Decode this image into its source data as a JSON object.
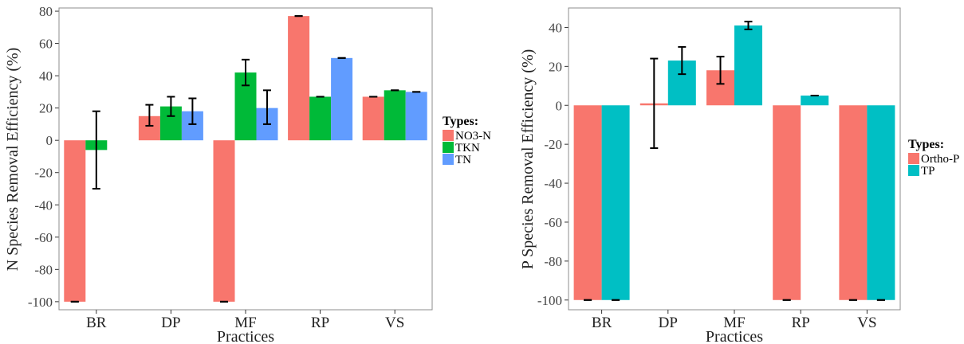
{
  "chart_data": [
    {
      "type": "bar",
      "xlabel": "Practices",
      "ylabel": "N Species Removal Efficiency (%)",
      "categories": [
        "BR",
        "DP",
        "MF",
        "RP",
        "VS"
      ],
      "ylim": [
        -105,
        82
      ],
      "yticks": [
        80,
        60,
        40,
        20,
        0,
        -20,
        -40,
        -60,
        -80,
        -100
      ],
      "ytick_labels": [
        "80",
        "60",
        "40",
        "20",
        "0",
        "-20",
        "-40",
        "-60",
        "-80",
        "-100"
      ],
      "legend": {
        "title": "Types:",
        "placement": "right"
      },
      "series": [
        {
          "name": "NO3-N",
          "color": "#F8766D",
          "values": [
            -100,
            15,
            -100,
            77,
            27
          ],
          "error_low": [
            -100,
            9,
            -100,
            77,
            27
          ],
          "error_high": [
            -100,
            22,
            -100,
            77,
            27
          ]
        },
        {
          "name": "TKN",
          "color": "#00BA38",
          "values": [
            -6,
            21,
            42,
            27,
            31
          ],
          "error_low": [
            -30,
            15,
            34,
            27,
            31
          ],
          "error_high": [
            18,
            27,
            50,
            27,
            31
          ]
        },
        {
          "name": "TN",
          "color": "#619CFF",
          "values": [
            null,
            18,
            20,
            51,
            30
          ],
          "error_low": [
            null,
            10,
            10,
            51,
            30
          ],
          "error_high": [
            null,
            26,
            31,
            51,
            30
          ]
        }
      ]
    },
    {
      "type": "bar",
      "xlabel": "Practices",
      "ylabel": "P Species Removal Efficiency (%)",
      "categories": [
        "BR",
        "DP",
        "MF",
        "RP",
        "VS"
      ],
      "ylim": [
        -105,
        50
      ],
      "yticks": [
        40,
        20,
        0,
        -20,
        -40,
        -60,
        -80,
        -100
      ],
      "ytick_labels": [
        "40",
        "20",
        "0",
        "-20",
        "-40",
        "-60",
        "-80",
        "-100"
      ],
      "legend": {
        "title": "Types:",
        "placement": "right"
      },
      "series": [
        {
          "name": "Ortho-P",
          "color": "#F8766D",
          "values": [
            -100,
            1,
            18,
            -100,
            -100
          ],
          "error_low": [
            -100,
            -22,
            11,
            -100,
            -100
          ],
          "error_high": [
            -100,
            24,
            25,
            -100,
            -100
          ]
        },
        {
          "name": "TP",
          "color": "#00BFC4",
          "values": [
            -100,
            23,
            41,
            5,
            -100
          ],
          "error_low": [
            -100,
            16,
            39,
            5,
            -100
          ],
          "error_high": [
            -100,
            30,
            43,
            5,
            -100
          ]
        }
      ]
    }
  ]
}
